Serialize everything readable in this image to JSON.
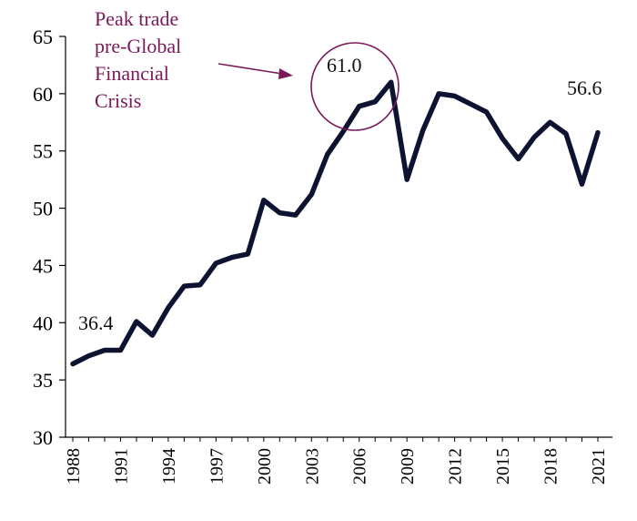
{
  "chart_data": {
    "type": "line",
    "title": "",
    "xlabel": "",
    "ylabel": "",
    "ylim": [
      30,
      65
    ],
    "yticks": [
      30,
      35,
      40,
      45,
      50,
      55,
      60,
      65
    ],
    "xlim": [
      1988,
      2021
    ],
    "xticks": [
      "1988",
      "1991",
      "1994",
      "1997",
      "2000",
      "2003",
      "2006",
      "2009",
      "2012",
      "2015",
      "2018",
      "2021"
    ],
    "grid": false,
    "legend": "none",
    "line_color": "#0d1330",
    "series": [
      {
        "x": [
          1988,
          1989,
          1990,
          1991,
          1992,
          1993,
          1994,
          1995,
          1996,
          1997,
          1998,
          1999,
          2000,
          2001,
          2002,
          2003,
          2004,
          2005,
          2006,
          2007,
          2008,
          2009,
          2010,
          2011,
          2012,
          2013,
          2014,
          2015,
          2016,
          2017,
          2018,
          2019,
          2020,
          2021
        ],
        "values": [
          36.4,
          37.1,
          37.6,
          37.6,
          40.1,
          38.9,
          41.3,
          43.2,
          43.3,
          45.2,
          45.7,
          46.0,
          50.7,
          49.6,
          49.4,
          51.2,
          54.7,
          56.7,
          58.9,
          59.3,
          61.0,
          52.5,
          56.8,
          60.0,
          59.8,
          59.1,
          58.4,
          56.1,
          54.3,
          56.2,
          57.5,
          56.5,
          52.1,
          56.6
        ]
      }
    ],
    "data_labels": {
      "start": "36.4",
      "peak": "61.0",
      "end": "56.6"
    },
    "annotation": {
      "lines": [
        "Peak trade",
        "pre-Global",
        "Financial",
        "Crisis"
      ],
      "color": "#7a1a5a"
    }
  }
}
